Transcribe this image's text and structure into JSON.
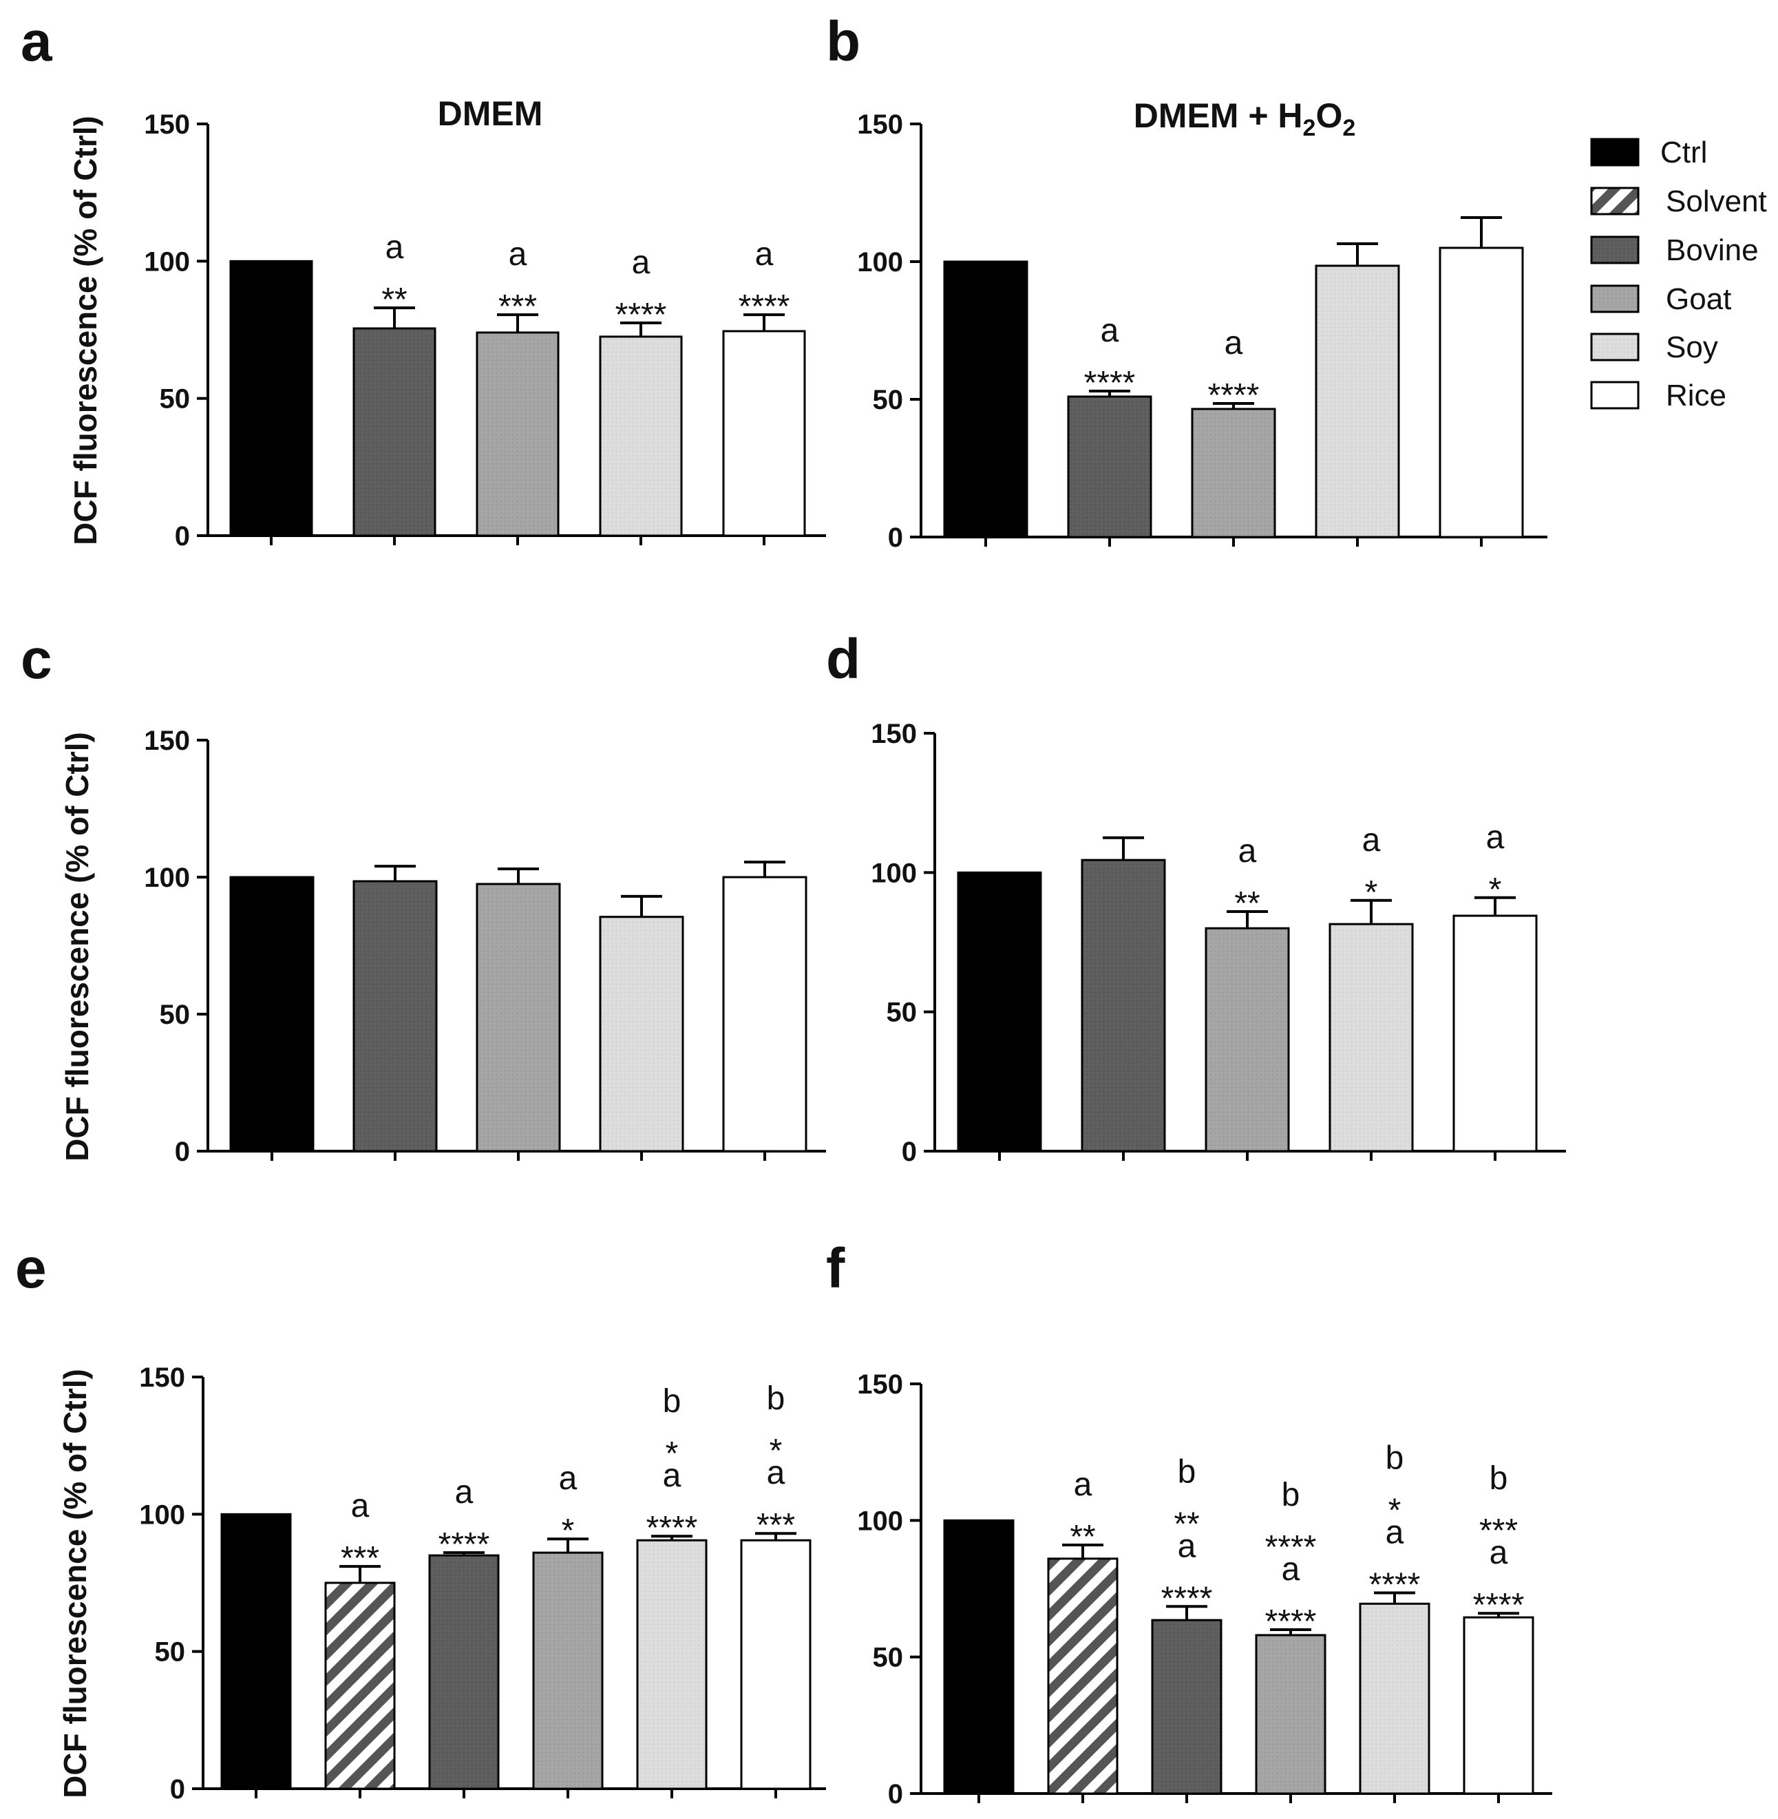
{
  "colors": {
    "Ctrl": "#000000",
    "Solvent": "#7d7d7d",
    "Bovine": "#5f5f5f",
    "Goat": "#a6a6a6",
    "Soy": "#dddddd",
    "Rice": "#ffffff"
  },
  "legend": {
    "items": [
      "Ctrl",
      "Solvent",
      "Bovine",
      "Goat",
      "Soy",
      "Rice"
    ]
  },
  "chart_data": [
    {
      "type": "bar",
      "panel": "a",
      "title": "DMEM",
      "ylabel": "DCF fluorescence (% of Ctrl)",
      "ylim": [
        0,
        150
      ],
      "yticks": [
        "0",
        "50",
        "100",
        "150"
      ],
      "categories": [
        "Ctrl",
        "Bovine",
        "Goat",
        "Soy",
        "Rice"
      ],
      "values": [
        100,
        75.5,
        74,
        72.5,
        74.5
      ],
      "errors": [
        0,
        7.5,
        6.5,
        5,
        6
      ],
      "annotations": [
        [],
        [
          "a",
          "**"
        ],
        [
          "a",
          "***"
        ],
        [
          "a",
          "****"
        ],
        [
          "a",
          "****"
        ]
      ]
    },
    {
      "type": "bar",
      "panel": "b",
      "title": "DMEM + H2O2",
      "title_main": "DMEM + H",
      "title_sub1": "2",
      "title_mid": "O",
      "title_sub2": "2",
      "ylabel": "",
      "ylim": [
        0,
        150
      ],
      "yticks": [
        "0",
        "50",
        "100",
        "150"
      ],
      "categories": [
        "Ctrl",
        "Bovine",
        "Goat",
        "Soy",
        "Rice"
      ],
      "values": [
        100,
        51,
        46.5,
        98.5,
        105
      ],
      "errors": [
        0,
        2,
        2,
        8,
        11
      ],
      "annotations": [
        [],
        [
          "a",
          "****"
        ],
        [
          "a",
          "****"
        ],
        [],
        []
      ]
    },
    {
      "type": "bar",
      "panel": "c",
      "title": "",
      "ylabel": "DCF fluorescence (% of Ctrl)",
      "ylim": [
        0,
        150
      ],
      "yticks": [
        "0",
        "50",
        "100",
        "150"
      ],
      "categories": [
        "Ctrl",
        "Bovine",
        "Goat",
        "Soy",
        "Rice"
      ],
      "values": [
        100,
        98.5,
        97.5,
        85.5,
        100
      ],
      "errors": [
        0,
        5.5,
        5.5,
        7.5,
        5.5
      ],
      "annotations": [
        [],
        [],
        [],
        [],
        []
      ]
    },
    {
      "type": "bar",
      "panel": "d",
      "title": "",
      "ylabel": "",
      "ylim": [
        0,
        150
      ],
      "yticks": [
        "0",
        "50",
        "100",
        "150"
      ],
      "categories": [
        "Ctrl",
        "Bovine",
        "Goat",
        "Soy",
        "Rice"
      ],
      "values": [
        100,
        104.5,
        80,
        81.5,
        84.5
      ],
      "errors": [
        0,
        8,
        6,
        8.5,
        6.5
      ],
      "annotations": [
        [],
        [],
        [
          "a",
          "**"
        ],
        [
          "a",
          "*"
        ],
        [
          "a",
          "*"
        ]
      ]
    },
    {
      "type": "bar",
      "panel": "e",
      "title": "",
      "ylabel": "DCF fluorescence (% of Ctrl)",
      "ylim": [
        0,
        150
      ],
      "yticks": [
        "0",
        "50",
        "100",
        "150"
      ],
      "categories": [
        "Ctrl",
        "Solvent",
        "Bovine",
        "Goat",
        "Soy",
        "Rice"
      ],
      "values": [
        100,
        75,
        85,
        86,
        90.5,
        90.5
      ],
      "errors": [
        0,
        6,
        1,
        5,
        1.5,
        2.5
      ],
      "annotations": [
        [],
        [
          "a",
          "***"
        ],
        [
          "a",
          "****"
        ],
        [
          "a",
          "*"
        ],
        [
          "b",
          "*",
          "a",
          "****"
        ],
        [
          "b",
          "*",
          "a",
          "***"
        ]
      ]
    },
    {
      "type": "bar",
      "panel": "f",
      "title": "",
      "ylabel": "",
      "ylim": [
        0,
        150
      ],
      "yticks": [
        "0",
        "50",
        "100",
        "150"
      ],
      "categories": [
        "Ctrl",
        "Solvent",
        "Bovine",
        "Goat",
        "Soy",
        "Rice"
      ],
      "values": [
        100,
        86,
        63.5,
        58,
        69.5,
        64.5
      ],
      "errors": [
        0,
        5,
        5,
        2,
        4,
        1.5
      ],
      "annotations": [
        [],
        [
          "a",
          "**"
        ],
        [
          "b",
          "**",
          "a",
          "****"
        ],
        [
          "b",
          "****",
          "a",
          "****"
        ],
        [
          "b",
          "*",
          "a",
          "****"
        ],
        [
          "b",
          "***",
          "a",
          "****"
        ]
      ]
    }
  ]
}
